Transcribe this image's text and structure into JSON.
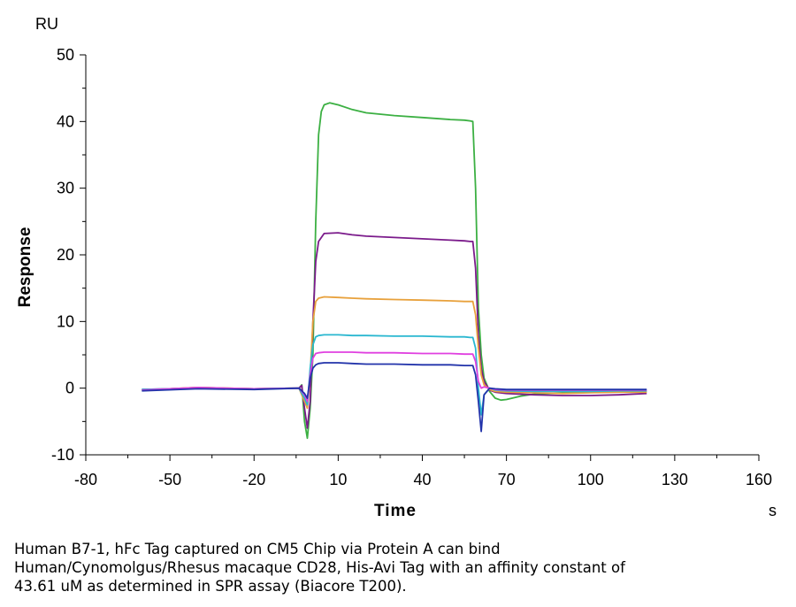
{
  "chart_data": {
    "type": "line",
    "title": "",
    "xlabel": "Time",
    "ylabel": "Response",
    "x_unit": "s",
    "y_unit": "RU",
    "xlim": [
      -80,
      160
    ],
    "ylim": [
      -10,
      50
    ],
    "x_ticks": [
      -80,
      -50,
      -20,
      10,
      40,
      70,
      100,
      130,
      160
    ],
    "y_ticks": [
      -10,
      0,
      10,
      20,
      30,
      40,
      50
    ],
    "grid": false,
    "legend": "none",
    "series": [
      {
        "color": "#3cb043",
        "x": [
          -60,
          -40,
          -20,
          -4,
          -3,
          -2,
          -1,
          0,
          1,
          2,
          3,
          4,
          5,
          7,
          10,
          15,
          20,
          30,
          40,
          50,
          55,
          57,
          58,
          59,
          60,
          61,
          62,
          64,
          66,
          68,
          70,
          75,
          80,
          90,
          100,
          110,
          120
        ],
        "y": [
          -0.3,
          0.1,
          -0.1,
          0,
          0.5,
          -5,
          -7.5,
          -3,
          5,
          25,
          38,
          41.5,
          42.5,
          42.8,
          42.5,
          41.8,
          41.3,
          40.9,
          40.6,
          40.3,
          40.2,
          40.1,
          40.0,
          30,
          12,
          5,
          1.5,
          -0.5,
          -1.5,
          -1.8,
          -1.7,
          -1.2,
          -0.9,
          -0.7,
          -0.6,
          -0.5,
          -0.5
        ]
      },
      {
        "color": "#7b1b8b",
        "x": [
          -60,
          -40,
          -20,
          -4,
          -3,
          -2,
          -1,
          0,
          1,
          2,
          3,
          5,
          10,
          15,
          20,
          30,
          40,
          50,
          55,
          57,
          58,
          59,
          60,
          61,
          62,
          64,
          66,
          70,
          80,
          90,
          100,
          110,
          120
        ],
        "y": [
          -0.2,
          0.0,
          -0.1,
          0,
          0.4,
          -3,
          -6,
          -2,
          10,
          19,
          22,
          23.2,
          23.3,
          23.0,
          22.8,
          22.6,
          22.4,
          22.2,
          22.1,
          22.0,
          22.0,
          18,
          8,
          3,
          1,
          -0.3,
          -0.6,
          -0.8,
          -1.0,
          -1.1,
          -1.1,
          -1.0,
          -0.8
        ]
      },
      {
        "color": "#e8a13c",
        "x": [
          -60,
          -40,
          -20,
          -4,
          -2,
          -1,
          0,
          1,
          2,
          3,
          5,
          10,
          15,
          20,
          30,
          40,
          50,
          55,
          57,
          58,
          59,
          60,
          61,
          62,
          64,
          66,
          70,
          80,
          90,
          100,
          110,
          120
        ],
        "y": [
          -0.3,
          0.1,
          -0.1,
          0,
          -2,
          -3,
          2,
          10,
          13,
          13.5,
          13.7,
          13.6,
          13.5,
          13.4,
          13.3,
          13.2,
          13.1,
          13.0,
          13.0,
          13.0,
          11,
          6,
          2,
          0.5,
          -0.2,
          -0.5,
          -0.6,
          -0.7,
          -0.8,
          -0.7,
          -0.6,
          -0.6
        ]
      },
      {
        "color": "#2ab7d0",
        "x": [
          -60,
          -40,
          -20,
          -4,
          -2,
          -1,
          0,
          1,
          2,
          3,
          5,
          10,
          15,
          20,
          30,
          40,
          50,
          55,
          57,
          58,
          59,
          60,
          61,
          62,
          64,
          66,
          70,
          80,
          90,
          100,
          110,
          120
        ],
        "y": [
          -0.2,
          0.0,
          -0.1,
          0,
          -1.5,
          -2.5,
          3,
          6.5,
          7.7,
          7.9,
          8.0,
          8.0,
          7.9,
          7.9,
          7.8,
          7.8,
          7.7,
          7.7,
          7.6,
          7.6,
          6,
          0,
          -4,
          -1,
          0,
          -0.3,
          -0.4,
          -0.5,
          -0.5,
          -0.5,
          -0.4,
          -0.4
        ]
      },
      {
        "color": "#e040e0",
        "x": [
          -60,
          -40,
          -20,
          -4,
          -2,
          -1,
          0,
          1,
          2,
          3,
          5,
          10,
          15,
          20,
          30,
          40,
          50,
          55,
          57,
          58,
          59,
          60,
          61,
          62,
          64,
          66,
          70,
          80,
          90,
          100,
          110,
          120
        ],
        "y": [
          -0.3,
          0.1,
          -0.1,
          0,
          -1,
          -2,
          2,
          4.5,
          5.2,
          5.3,
          5.4,
          5.4,
          5.4,
          5.3,
          5.3,
          5.2,
          5.2,
          5.1,
          5.1,
          5.1,
          4,
          1,
          0,
          0.2,
          0,
          -0.2,
          -0.3,
          -0.3,
          -0.3,
          -0.3,
          -0.3,
          -0.3
        ]
      },
      {
        "color": "#2233aa",
        "x": [
          -60,
          -40,
          -20,
          -4,
          -2,
          -1,
          0,
          1,
          2,
          3,
          5,
          10,
          15,
          20,
          30,
          40,
          50,
          55,
          57,
          58,
          59,
          60,
          61,
          62,
          64,
          66,
          70,
          80,
          90,
          100,
          110,
          120
        ],
        "y": [
          -0.4,
          -0.1,
          -0.2,
          0,
          -0.8,
          -1.5,
          1.5,
          3.0,
          3.5,
          3.7,
          3.8,
          3.8,
          3.7,
          3.6,
          3.6,
          3.5,
          3.5,
          3.4,
          3.4,
          3.4,
          2,
          -2,
          -6.5,
          -1,
          0,
          -0.1,
          -0.2,
          -0.2,
          -0.2,
          -0.2,
          -0.2,
          -0.2
        ]
      }
    ]
  },
  "caption": {
    "line1": "Human B7-1, hFc Tag captured on CM5 Chip via Protein A can bind",
    "line2": "Human/Cynomolgus/Rhesus macaque CD28, His-Avi Tag with an affinity constant of",
    "line3": "43.61 uM as determined in SPR assay (Biacore T200)."
  }
}
